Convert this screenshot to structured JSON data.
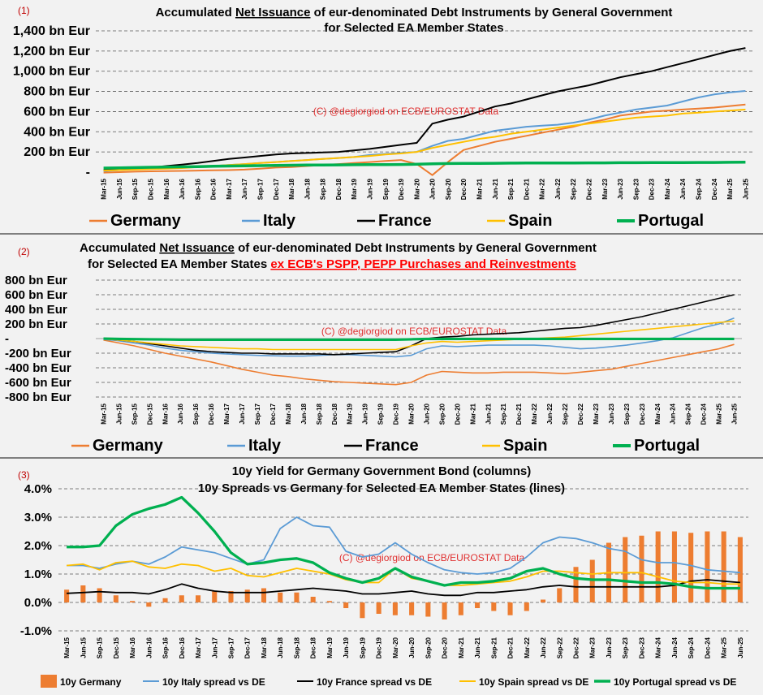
{
  "colors": {
    "germany": "#ed7d31",
    "italy": "#5b9bd5",
    "france": "#000000",
    "spain": "#ffc000",
    "portugal": "#00b050",
    "panel_number": "#c00000",
    "watermark": "#e03030",
    "ex_ecb_highlight": "#ff0000"
  },
  "x_labels": [
    "Mar-15",
    "Jun-15",
    "Sep-15",
    "Dec-15",
    "Mar-16",
    "Jun-16",
    "Sep-16",
    "Dec-16",
    "Mar-17",
    "Jun-17",
    "Sep-17",
    "Dec-17",
    "Mar-18",
    "Jun-18",
    "Sep-18",
    "Dec-18",
    "Mar-19",
    "Jun-19",
    "Sep-19",
    "Dec-19",
    "Mar-20",
    "Jun-20",
    "Sep-20",
    "Dec-20",
    "Mar-21",
    "Jun-21",
    "Sep-21",
    "Dec-21",
    "Mar-22",
    "Jun-22",
    "Sep-22",
    "Dec-22",
    "Mar-23",
    "Jun-23",
    "Sep-23",
    "Dec-23",
    "Mar-24",
    "Jun-24",
    "Sep-24",
    "Dec-24",
    "Mar-25",
    "Jun-25"
  ],
  "chart_data": [
    {
      "type": "line",
      "panel_number": "(1)",
      "title_prefix": "Accumulated ",
      "title_emphasis": "Net Issuance",
      "title_suffix": " of eur-denominated Debt Instruments by General Government",
      "title_line2": "for Selected EA Member States",
      "watermark": "(C) @degiorgiod on ECB/EUROSTAT Data",
      "ylim": [
        0,
        1400
      ],
      "y_ticks": [
        0,
        200,
        400,
        600,
        800,
        1000,
        1200,
        1400
      ],
      "y_tick_labels": [
        "-",
        "200 bn Eur",
        "400 bn Eur",
        "600 bn Eur",
        "800 bn Eur",
        "1,000 bn Eur",
        "1,200 bn Eur",
        "1,400 bn Eur"
      ],
      "series": [
        {
          "name": "Germany",
          "key": "germany",
          "values": [
            -5,
            0,
            5,
            8,
            10,
            12,
            15,
            18,
            20,
            25,
            35,
            45,
            50,
            60,
            70,
            80,
            90,
            100,
            110,
            120,
            80,
            -30,
            100,
            220,
            260,
            300,
            330,
            360,
            390,
            420,
            450,
            490,
            520,
            560,
            580,
            600,
            610,
            620,
            630,
            640,
            655,
            670
          ]
        },
        {
          "name": "Italy",
          "key": "italy",
          "values": [
            10,
            20,
            30,
            35,
            40,
            45,
            50,
            60,
            70,
            80,
            90,
            100,
            110,
            120,
            130,
            140,
            150,
            170,
            180,
            190,
            200,
            260,
            310,
            330,
            370,
            410,
            430,
            450,
            460,
            470,
            490,
            520,
            560,
            590,
            620,
            640,
            660,
            700,
            740,
            770,
            790,
            805
          ]
        },
        {
          "name": "France",
          "key": "france",
          "values": [
            20,
            25,
            35,
            45,
            60,
            75,
            90,
            110,
            130,
            145,
            160,
            175,
            185,
            190,
            195,
            200,
            215,
            230,
            250,
            270,
            290,
            480,
            520,
            550,
            600,
            650,
            680,
            720,
            760,
            800,
            830,
            860,
            900,
            940,
            970,
            1000,
            1040,
            1080,
            1120,
            1160,
            1200,
            1230
          ]
        },
        {
          "name": "Spain",
          "key": "spain",
          "values": [
            15,
            20,
            25,
            30,
            35,
            40,
            50,
            60,
            70,
            80,
            90,
            100,
            110,
            120,
            130,
            140,
            150,
            160,
            175,
            185,
            200,
            240,
            270,
            300,
            330,
            350,
            380,
            400,
            420,
            440,
            460,
            480,
            500,
            520,
            540,
            550,
            560,
            580,
            590,
            600,
            610,
            620
          ]
        },
        {
          "name": "Portugal",
          "key": "portugal",
          "values": [
            40,
            42,
            45,
            48,
            50,
            52,
            55,
            58,
            60,
            62,
            64,
            66,
            68,
            70,
            71,
            72,
            73,
            74,
            75,
            76,
            78,
            82,
            85,
            86,
            87,
            88,
            89,
            90,
            90,
            91,
            91,
            92,
            92,
            93,
            93,
            94,
            94,
            95,
            96,
            96,
            97,
            98
          ]
        }
      ]
    },
    {
      "type": "line",
      "panel_number": "(2)",
      "title_prefix": "Accumulated ",
      "title_emphasis": "Net Issuance",
      "title_suffix": " of eur-denominated Debt Instruments by General Government",
      "title_line2": "for Selected EA Member States ",
      "title_highlight": "ex ECB's PSPP, PEPP Purchases and Reinvestments",
      "watermark": "(C) @degiorgiod on ECB/EUROSTAT Data",
      "ylim": [
        -800,
        800
      ],
      "y_ticks": [
        -800,
        -600,
        -400,
        -200,
        0,
        200,
        400,
        600,
        800
      ],
      "y_tick_labels": [
        "-800 bn Eur",
        "-600 bn Eur",
        "-400 bn Eur",
        "-200 bn Eur",
        "-",
        "200 bn Eur",
        "400 bn Eur",
        "600 bn Eur",
        "800 bn Eur"
      ],
      "series": [
        {
          "name": "Germany",
          "key": "germany",
          "values": [
            -20,
            -60,
            -100,
            -150,
            -200,
            -240,
            -280,
            -320,
            -370,
            -420,
            -460,
            -500,
            -520,
            -550,
            -570,
            -590,
            -600,
            -610,
            -620,
            -630,
            -600,
            -500,
            -450,
            -460,
            -470,
            -470,
            -460,
            -460,
            -460,
            -470,
            -480,
            -460,
            -440,
            -420,
            -380,
            -340,
            -300,
            -260,
            -220,
            -180,
            -140,
            -80
          ]
        },
        {
          "name": "Italy",
          "key": "italy",
          "values": [
            -10,
            -30,
            -60,
            -90,
            -130,
            -160,
            -180,
            -200,
            -210,
            -220,
            -230,
            -235,
            -240,
            -240,
            -230,
            -220,
            -220,
            -230,
            -240,
            -250,
            -230,
            -140,
            -100,
            -110,
            -100,
            -90,
            -90,
            -90,
            -90,
            -100,
            -120,
            -140,
            -130,
            -110,
            -90,
            -60,
            -30,
            10,
            80,
            150,
            200,
            280
          ]
        },
        {
          "name": "France",
          "key": "france",
          "values": [
            0,
            -20,
            -40,
            -70,
            -100,
            -130,
            -160,
            -180,
            -190,
            -200,
            -200,
            -210,
            -210,
            -210,
            -210,
            -220,
            -210,
            -200,
            -190,
            -180,
            -100,
            0,
            20,
            30,
            50,
            60,
            70,
            80,
            100,
            120,
            140,
            150,
            180,
            220,
            260,
            300,
            350,
            400,
            450,
            500,
            550,
            600
          ]
        },
        {
          "name": "Spain",
          "key": "spain",
          "values": [
            -5,
            -20,
            -40,
            -60,
            -80,
            -100,
            -110,
            -120,
            -130,
            -140,
            -140,
            -150,
            -150,
            -150,
            -150,
            -150,
            -150,
            -150,
            -150,
            -150,
            -100,
            -60,
            -40,
            -50,
            -40,
            -30,
            -20,
            -10,
            0,
            10,
            20,
            40,
            60,
            80,
            100,
            120,
            140,
            160,
            180,
            200,
            220,
            240
          ]
        },
        {
          "name": "Portugal",
          "key": "portugal",
          "values": [
            0,
            -5,
            -8,
            -10,
            -12,
            -15,
            -15,
            -15,
            -15,
            -15,
            -15,
            -15,
            -15,
            -15,
            -15,
            -15,
            -15,
            -15,
            -15,
            -15,
            -10,
            -5,
            -5,
            -5,
            -5,
            -5,
            -5,
            -5,
            -5,
            -5,
            -5,
            -5,
            -5,
            -5,
            -5,
            -5,
            -5,
            -5,
            -5,
            -5,
            -5,
            -5
          ]
        }
      ]
    },
    {
      "type": "bar+line",
      "panel_number": "(3)",
      "title_line1": "10y Yield for Germany Government Bond (columns)",
      "title_line2": "10y Spreads vs Germany for Selected EA Member States (lines)",
      "watermark": "(C) @degiorgiod on ECB/EUROSTAT Data",
      "ylim": [
        -1.0,
        4.0
      ],
      "y_ticks": [
        -1,
        0,
        1,
        2,
        3,
        4
      ],
      "y_tick_labels": [
        "-1.0%",
        "0.0%",
        "1.0%",
        "2.0%",
        "3.0%",
        "4.0%"
      ],
      "bars": {
        "name": "10y Germany",
        "key": "germany",
        "values": [
          0.45,
          0.6,
          0.5,
          0.25,
          0.05,
          -0.15,
          0.15,
          0.25,
          0.25,
          0.4,
          0.4,
          0.45,
          0.5,
          0.35,
          0.35,
          0.2,
          0.05,
          -0.2,
          -0.55,
          -0.4,
          -0.45,
          -0.45,
          -0.5,
          -0.6,
          -0.45,
          -0.2,
          -0.3,
          -0.45,
          -0.3,
          0.1,
          0.5,
          1.25,
          1.5,
          2.1,
          2.3,
          2.35,
          2.5,
          2.5,
          2.45,
          2.5,
          2.5,
          2.3
        ]
      },
      "series": [
        {
          "name": "10y Italy spread vs DE",
          "key": "italy",
          "values": [
            1.3,
            1.3,
            1.2,
            1.35,
            1.45,
            1.35,
            1.6,
            1.95,
            1.85,
            1.75,
            1.55,
            1.35,
            1.5,
            2.6,
            3.0,
            2.7,
            2.65,
            1.8,
            1.6,
            1.7,
            2.1,
            1.7,
            1.4,
            1.15,
            1.05,
            1.0,
            1.05,
            1.2,
            1.6,
            2.1,
            2.3,
            2.25,
            2.1,
            1.9,
            1.8,
            1.5,
            1.4,
            1.4,
            1.3,
            1.15,
            1.1,
            1.05
          ]
        },
        {
          "name": "10y France spread vs DE",
          "key": "france",
          "values": [
            0.32,
            0.35,
            0.38,
            0.35,
            0.35,
            0.3,
            0.45,
            0.65,
            0.5,
            0.4,
            0.35,
            0.35,
            0.35,
            0.4,
            0.45,
            0.5,
            0.45,
            0.4,
            0.3,
            0.3,
            0.35,
            0.4,
            0.3,
            0.25,
            0.25,
            0.35,
            0.35,
            0.4,
            0.45,
            0.55,
            0.6,
            0.55,
            0.55,
            0.55,
            0.55,
            0.55,
            0.55,
            0.6,
            0.75,
            0.8,
            0.75,
            0.7
          ]
        },
        {
          "name": "10y Spain spread vs DE",
          "key": "spain",
          "values": [
            1.3,
            1.35,
            1.15,
            1.4,
            1.45,
            1.25,
            1.2,
            1.35,
            1.3,
            1.1,
            1.2,
            0.95,
            0.9,
            1.05,
            1.2,
            1.1,
            1.0,
            0.8,
            0.7,
            0.7,
            1.2,
            0.85,
            0.75,
            0.6,
            0.6,
            0.65,
            0.7,
            0.75,
            0.9,
            1.1,
            1.1,
            1.05,
            1.0,
            1.05,
            1.05,
            1.05,
            0.9,
            0.75,
            0.7,
            0.7,
            0.65,
            0.65
          ]
        },
        {
          "name": "10y Portugal spread vs DE",
          "key": "portugal",
          "values": [
            1.95,
            1.95,
            2.0,
            2.7,
            3.1,
            3.3,
            3.45,
            3.7,
            3.15,
            2.5,
            1.75,
            1.35,
            1.4,
            1.5,
            1.55,
            1.4,
            1.05,
            0.85,
            0.7,
            0.85,
            1.2,
            0.9,
            0.75,
            0.6,
            0.7,
            0.7,
            0.75,
            0.85,
            1.1,
            1.2,
            1.0,
            0.85,
            0.8,
            0.8,
            0.75,
            0.7,
            0.7,
            0.65,
            0.55,
            0.5,
            0.5,
            0.5
          ]
        }
      ]
    }
  ]
}
